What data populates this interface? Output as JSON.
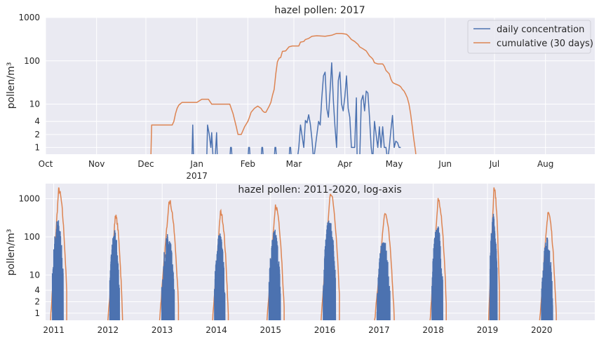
{
  "chart_data": [
    {
      "type": "line",
      "title": "hazel pollen: 2017",
      "ylabel": "pollen/m³",
      "xlabel": "",
      "yscale": "log",
      "ylim": [
        0.7,
        1000
      ],
      "yticks": [
        1,
        2,
        4,
        10,
        100,
        1000
      ],
      "ytick_labels": [
        "1",
        "2",
        "4",
        "10",
        "100",
        "1000"
      ],
      "x_unit": "days since 1 Oct 2016",
      "xlim": [
        0,
        334
      ],
      "xticks": [
        0,
        31,
        61,
        92,
        123,
        151,
        182,
        212,
        243,
        273,
        304
      ],
      "xtick_labels": [
        "Oct",
        "Nov",
        "Dec",
        "Jan",
        "Feb",
        "Mar",
        "Apr",
        "May",
        "Jun",
        "Jul",
        "Aug"
      ],
      "year_label": {
        "x": 92,
        "text": "2017"
      },
      "legend": {
        "position": "top-right",
        "entries": [
          "daily concentration",
          "cumulative (30 days)"
        ]
      },
      "grid": true,
      "series": [
        {
          "name": "daily concentration",
          "color": "#4c72b0",
          "points": [
            [
              89,
              0.5
            ],
            [
              89.5,
              3.3
            ],
            [
              90,
              0.5
            ],
            [
              98,
              0.5
            ],
            [
              98.5,
              3.3
            ],
            [
              99.5,
              2
            ],
            [
              100.5,
              1
            ],
            [
              101,
              2.2
            ],
            [
              101.5,
              1
            ],
            [
              102,
              0.5
            ],
            [
              103,
              0.5
            ],
            [
              104,
              2.2
            ],
            [
              104.5,
              0.5
            ],
            [
              112,
              0.5
            ],
            [
              112.5,
              1
            ],
            [
              113,
              1
            ],
            [
              113.5,
              0.5
            ],
            [
              123,
              0.5
            ],
            [
              123.5,
              1
            ],
            [
              124,
              1
            ],
            [
              124.5,
              0.5
            ],
            [
              131,
              0.5
            ],
            [
              131.5,
              1
            ],
            [
              132,
              1
            ],
            [
              132.5,
              0.5
            ],
            [
              139,
              0.5
            ],
            [
              139.5,
              1
            ],
            [
              140,
              1
            ],
            [
              140.5,
              0.5
            ],
            [
              148,
              0.5
            ],
            [
              148.5,
              1
            ],
            [
              149,
              1
            ],
            [
              149.5,
              0.5
            ],
            [
              153,
              0.5
            ],
            [
              154,
              1
            ],
            [
              155,
              3.3
            ],
            [
              157,
              1
            ],
            [
              158,
              4.2
            ],
            [
              159,
              3.7
            ],
            [
              160,
              5.7
            ],
            [
              161,
              3.5
            ],
            [
              162,
              1.5
            ],
            [
              163,
              0.5
            ],
            [
              166,
              4
            ],
            [
              167,
              3.3
            ],
            [
              168,
              14
            ],
            [
              169,
              45
            ],
            [
              170,
              55
            ],
            [
              171,
              8
            ],
            [
              172,
              5
            ],
            [
              173,
              20
            ],
            [
              174,
              90
            ],
            [
              175,
              12
            ],
            [
              176,
              3
            ],
            [
              177,
              1
            ],
            [
              178,
              35
            ],
            [
              179,
              55
            ],
            [
              180,
              10
            ],
            [
              181,
              7
            ],
            [
              182,
              15
            ],
            [
              183,
              45
            ],
            [
              184,
              8
            ],
            [
              185,
              5
            ],
            [
              186,
              1
            ],
            [
              187,
              1
            ],
            [
              188,
              1
            ],
            [
              189,
              14
            ],
            [
              189.5,
              0.5
            ],
            [
              191,
              0.5
            ],
            [
              192,
              12
            ],
            [
              193,
              16
            ],
            [
              194,
              7
            ],
            [
              195,
              20
            ],
            [
              196,
              18
            ],
            [
              197,
              5
            ],
            [
              198,
              1
            ],
            [
              199,
              0.5
            ],
            [
              200,
              4
            ],
            [
              201,
              2
            ],
            [
              202,
              1
            ],
            [
              203,
              3
            ],
            [
              204,
              1
            ],
            [
              205,
              3
            ],
            [
              206,
              1
            ],
            [
              207,
              1
            ],
            [
              208,
              0.5
            ],
            [
              209,
              1
            ],
            [
              210,
              2.5
            ],
            [
              211,
              5.5
            ],
            [
              212,
              1
            ],
            [
              213,
              1.4
            ],
            [
              214,
              1.3
            ],
            [
              215,
              1
            ],
            [
              216,
              1
            ]
          ]
        },
        {
          "name": "cumulative (30 days)",
          "color": "#dd8452",
          "points": [
            [
              64,
              0.5
            ],
            [
              64.5,
              3.3
            ],
            [
              77,
              3.3
            ],
            [
              78,
              4
            ],
            [
              79,
              6
            ],
            [
              80,
              8
            ],
            [
              81,
              9.5
            ],
            [
              83,
              11
            ],
            [
              88,
              11
            ],
            [
              90,
              11
            ],
            [
              92,
              11
            ],
            [
              95,
              13
            ],
            [
              99,
              13
            ],
            [
              101,
              10
            ],
            [
              112,
              10
            ],
            [
              114,
              6
            ],
            [
              116,
              3
            ],
            [
              117,
              2
            ],
            [
              119,
              2
            ],
            [
              121,
              3
            ],
            [
              123,
              4
            ],
            [
              124,
              5
            ],
            [
              125,
              6.5
            ],
            [
              127,
              8
            ],
            [
              129,
              9
            ],
            [
              131,
              8
            ],
            [
              132,
              7
            ],
            [
              133,
              6.5
            ],
            [
              134,
              6.5
            ],
            [
              136,
              9
            ],
            [
              137,
              11
            ],
            [
              138,
              16
            ],
            [
              139,
              22
            ],
            [
              140,
              50
            ],
            [
              141,
              95
            ],
            [
              142,
              115
            ],
            [
              143,
              120
            ],
            [
              144,
              165
            ],
            [
              146,
              170
            ],
            [
              148,
              210
            ],
            [
              150,
              220
            ],
            [
              154,
              220
            ],
            [
              155,
              270
            ],
            [
              157,
              280
            ],
            [
              158,
              310
            ],
            [
              160,
              330
            ],
            [
              162,
              370
            ],
            [
              165,
              380
            ],
            [
              170,
              370
            ],
            [
              172,
              380
            ],
            [
              174,
              390
            ],
            [
              177,
              430
            ],
            [
              180,
              430
            ],
            [
              183,
              410
            ],
            [
              184,
              380
            ],
            [
              186,
              310
            ],
            [
              188,
              280
            ],
            [
              190,
              240
            ],
            [
              191,
              210
            ],
            [
              193,
              190
            ],
            [
              195,
              170
            ],
            [
              197,
              130
            ],
            [
              198,
              120
            ],
            [
              199,
              110
            ],
            [
              200,
              90
            ],
            [
              202,
              85
            ],
            [
              205,
              85
            ],
            [
              206,
              75
            ],
            [
              207,
              60
            ],
            [
              209,
              50
            ],
            [
              210,
              38
            ],
            [
              211,
              32
            ],
            [
              212,
              30
            ],
            [
              213,
              29
            ],
            [
              215,
              27
            ],
            [
              216,
              25
            ],
            [
              217,
              22
            ],
            [
              218,
              20
            ],
            [
              219,
              17
            ],
            [
              220,
              14
            ],
            [
              221,
              10
            ],
            [
              222,
              6
            ],
            [
              223,
              3
            ],
            [
              224,
              1.5
            ],
            [
              225,
              0.8
            ],
            [
              225.5,
              0.5
            ]
          ]
        }
      ]
    },
    {
      "type": "line",
      "title": "hazel pollen: 2011-2020, log-axis",
      "ylabel": "pollen/m³",
      "xlabel": "",
      "yscale": "log",
      "ylim": [
        0.65,
        2500
      ],
      "yticks": [
        1,
        2,
        4,
        10,
        100,
        1000
      ],
      "ytick_labels": [
        "1",
        "2",
        "4",
        "10",
        "100",
        "1000"
      ],
      "x_unit": "year",
      "xlim": [
        2010.85,
        2020.98
      ],
      "xticks": [
        2011,
        2012,
        2013,
        2014,
        2015,
        2016,
        2017,
        2018,
        2019,
        2020
      ],
      "xtick_labels": [
        "2011",
        "2012",
        "2013",
        "2014",
        "2015",
        "2016",
        "2017",
        "2018",
        "2019",
        "2020"
      ],
      "grid": true,
      "seasons": [
        {
          "year": 2011,
          "daily_peak": 290,
          "cumulative_peak": 1750,
          "start": -0.06,
          "end": 0.24
        },
        {
          "year": 2012,
          "daily_peak": 145,
          "cumulative_peak": 360,
          "start": 0.0,
          "end": 0.27
        },
        {
          "year": 2013,
          "daily_peak": 120,
          "cumulative_peak": 900,
          "start": -0.05,
          "end": 0.3
        },
        {
          "year": 2014,
          "daily_peak": 130,
          "cumulative_peak": 450,
          "start": -0.07,
          "end": 0.22
        },
        {
          "year": 2015,
          "daily_peak": 155,
          "cumulative_peak": 650,
          "start": -0.07,
          "end": 0.25
        },
        {
          "year": 2016,
          "daily_peak": 290,
          "cumulative_peak": 1450,
          "start": -0.07,
          "end": 0.27
        },
        {
          "year": 2017,
          "daily_peak": 90,
          "cumulative_peak": 430,
          "start": -0.08,
          "end": 0.28
        },
        {
          "year": 2018,
          "daily_peak": 210,
          "cumulative_peak": 950,
          "start": -0.06,
          "end": 0.24
        },
        {
          "year": 2019,
          "daily_peak": 400,
          "cumulative_peak": 2050,
          "start": 0.02,
          "end": 0.22
        },
        {
          "year": 2020,
          "daily_peak": 95,
          "cumulative_peak": 450,
          "start": -0.04,
          "end": 0.27
        }
      ],
      "series": [
        {
          "name": "daily concentration",
          "color": "#4c72b0"
        },
        {
          "name": "cumulative (30 days)",
          "color": "#dd8452"
        }
      ]
    }
  ]
}
